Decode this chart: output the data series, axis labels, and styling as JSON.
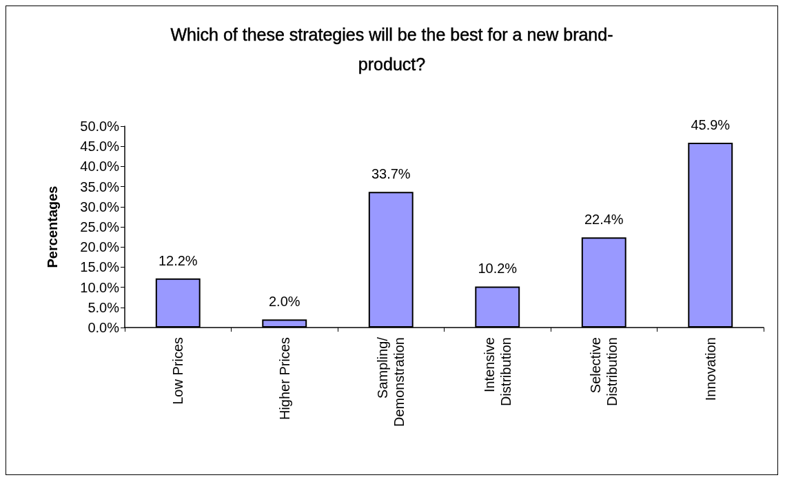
{
  "chart_data": {
    "type": "bar",
    "title": "Which of these strategies will be the best for a new brand-\nproduct?",
    "ylabel": "Percentages",
    "categories": [
      "Low Prices",
      "Higher Prices",
      "Sampling/\nDemonstration",
      "Intensive\nDistribution",
      "Selective\nDistribution",
      "Innovation"
    ],
    "values": [
      12.2,
      2.0,
      33.7,
      10.2,
      22.4,
      45.9
    ],
    "value_labels": [
      "12.2%",
      "2.0%",
      "33.7%",
      "10.2%",
      "22.4%",
      "45.9%"
    ],
    "color": "#9999ff",
    "ylim": [
      0,
      50
    ],
    "yticks": [
      {
        "value": 0,
        "label": "0.0%"
      },
      {
        "value": 5,
        "label": "5.0%"
      },
      {
        "value": 10,
        "label": "10.0%"
      },
      {
        "value": 15,
        "label": "15.0%"
      },
      {
        "value": 20,
        "label": "20.0%"
      },
      {
        "value": 25,
        "label": "25.0%"
      },
      {
        "value": 30,
        "label": "30.0%"
      },
      {
        "value": 35,
        "label": "35.0%"
      },
      {
        "value": 40,
        "label": "40.0%"
      },
      {
        "value": 45,
        "label": "45.0%"
      },
      {
        "value": 50,
        "label": "50.0%"
      }
    ],
    "grid": false
  }
}
